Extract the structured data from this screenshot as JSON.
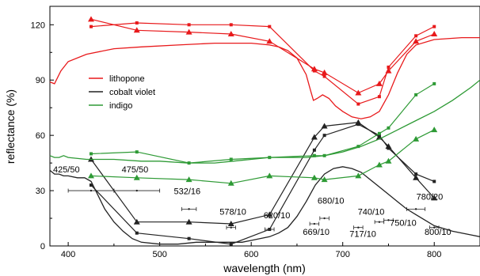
{
  "chart_data": {
    "type": "line",
    "xlabel": "wavelength (nm)",
    "ylabel": "reflectance (%)",
    "xlim": [
      380,
      850
    ],
    "ylim": [
      0,
      130
    ],
    "xticks": [
      400,
      500,
      600,
      700,
      800
    ],
    "yticks": [
      0,
      30,
      60,
      90,
      120
    ],
    "grid": false,
    "legend_position": "upper-left",
    "series": [
      {
        "name": "lithopone",
        "color": "#e8191b",
        "kind": "continuous",
        "points": [
          [
            380,
            89
          ],
          [
            385,
            88
          ],
          [
            392,
            95
          ],
          [
            400,
            100
          ],
          [
            420,
            104
          ],
          [
            450,
            107
          ],
          [
            480,
            108
          ],
          [
            520,
            109
          ],
          [
            560,
            110
          ],
          [
            600,
            110
          ],
          [
            620,
            109
          ],
          [
            630,
            108
          ],
          [
            640,
            106
          ],
          [
            650,
            102
          ],
          [
            660,
            93
          ],
          [
            665,
            84
          ],
          [
            668,
            79
          ],
          [
            672,
            80
          ],
          [
            678,
            82
          ],
          [
            685,
            80
          ],
          [
            692,
            76
          ],
          [
            700,
            73
          ],
          [
            710,
            70
          ],
          [
            720,
            69
          ],
          [
            730,
            70
          ],
          [
            740,
            73
          ],
          [
            750,
            82
          ],
          [
            760,
            94
          ],
          [
            770,
            104
          ],
          [
            780,
            109
          ],
          [
            800,
            112
          ],
          [
            830,
            113
          ],
          [
            850,
            113
          ]
        ]
      },
      {
        "name": "",
        "color": "#e8191b",
        "kind": "markers",
        "marker": "triangle",
        "points": [
          [
            425,
            123
          ],
          [
            475,
            117
          ],
          [
            532,
            116
          ],
          [
            578,
            115
          ],
          [
            620,
            111
          ],
          [
            669,
            96
          ],
          [
            680,
            94
          ],
          [
            717,
            83
          ],
          [
            740,
            88
          ],
          [
            750,
            95
          ],
          [
            780,
            111
          ],
          [
            800,
            115
          ]
        ]
      },
      {
        "name": "",
        "color": "#e8191b",
        "kind": "markers",
        "marker": "square",
        "points": [
          [
            425,
            119
          ],
          [
            475,
            121
          ],
          [
            532,
            120
          ],
          [
            578,
            120
          ],
          [
            620,
            119
          ],
          [
            669,
            95
          ],
          [
            680,
            92
          ],
          [
            717,
            77
          ],
          [
            740,
            81
          ],
          [
            750,
            97
          ],
          [
            780,
            114
          ],
          [
            800,
            119
          ]
        ]
      },
      {
        "name": "cobalt violet",
        "color": "#222222",
        "kind": "continuous",
        "points": [
          [
            380,
            41
          ],
          [
            385,
            39
          ],
          [
            390,
            39
          ],
          [
            395,
            38
          ],
          [
            400,
            38
          ],
          [
            410,
            37
          ],
          [
            418,
            37
          ],
          [
            425,
            35
          ],
          [
            432,
            28
          ],
          [
            440,
            20
          ],
          [
            450,
            13
          ],
          [
            460,
            8
          ],
          [
            470,
            4
          ],
          [
            480,
            2
          ],
          [
            500,
            1
          ],
          [
            520,
            1
          ],
          [
            540,
            2
          ],
          [
            560,
            2
          ],
          [
            580,
            2
          ],
          [
            590,
            2
          ],
          [
            600,
            3
          ],
          [
            620,
            5
          ],
          [
            630,
            7
          ],
          [
            640,
            10
          ],
          [
            650,
            16
          ],
          [
            660,
            24
          ],
          [
            670,
            33
          ],
          [
            680,
            39
          ],
          [
            690,
            42
          ],
          [
            700,
            43
          ],
          [
            710,
            42
          ],
          [
            720,
            40
          ],
          [
            730,
            36
          ],
          [
            740,
            32
          ],
          [
            750,
            28
          ],
          [
            760,
            24
          ],
          [
            770,
            20
          ],
          [
            780,
            17
          ],
          [
            790,
            14
          ],
          [
            800,
            11
          ],
          [
            820,
            8
          ],
          [
            840,
            6
          ],
          [
            850,
            5
          ]
        ]
      },
      {
        "name": "",
        "color": "#222222",
        "kind": "markers",
        "marker": "triangle",
        "points": [
          [
            425,
            47
          ],
          [
            475,
            13
          ],
          [
            532,
            13
          ],
          [
            578,
            12
          ],
          [
            620,
            17
          ],
          [
            669,
            59
          ],
          [
            680,
            65
          ],
          [
            717,
            67
          ],
          [
            740,
            59
          ],
          [
            750,
            54
          ],
          [
            780,
            37
          ],
          [
            800,
            26
          ]
        ]
      },
      {
        "name": "",
        "color": "#222222",
        "kind": "markers",
        "marker": "square",
        "points": [
          [
            425,
            33
          ],
          [
            475,
            7
          ],
          [
            532,
            4
          ],
          [
            578,
            1
          ],
          [
            620,
            9
          ],
          [
            669,
            52
          ],
          [
            680,
            60
          ],
          [
            717,
            66
          ],
          [
            740,
            60
          ],
          [
            750,
            53
          ],
          [
            780,
            39
          ],
          [
            800,
            35
          ]
        ]
      },
      {
        "name": "indigo",
        "color": "#2e9a35",
        "kind": "continuous",
        "points": [
          [
            380,
            49
          ],
          [
            385,
            48
          ],
          [
            390,
            48
          ],
          [
            395,
            49
          ],
          [
            400,
            48
          ],
          [
            420,
            47
          ],
          [
            450,
            47
          ],
          [
            480,
            46
          ],
          [
            500,
            46
          ],
          [
            530,
            45
          ],
          [
            560,
            45
          ],
          [
            580,
            46
          ],
          [
            600,
            47
          ],
          [
            620,
            48
          ],
          [
            640,
            48
          ],
          [
            660,
            48
          ],
          [
            680,
            49
          ],
          [
            700,
            51
          ],
          [
            720,
            54
          ],
          [
            740,
            58
          ],
          [
            760,
            63
          ],
          [
            780,
            68
          ],
          [
            800,
            73
          ],
          [
            820,
            79
          ],
          [
            840,
            86
          ],
          [
            850,
            90
          ]
        ]
      },
      {
        "name": "",
        "color": "#2e9a35",
        "kind": "markers",
        "marker": "triangle",
        "points": [
          [
            425,
            38
          ],
          [
            475,
            37
          ],
          [
            532,
            36
          ],
          [
            578,
            34
          ],
          [
            620,
            38
          ],
          [
            669,
            37
          ],
          [
            680,
            36
          ],
          [
            717,
            38
          ],
          [
            740,
            44
          ],
          [
            750,
            46
          ],
          [
            780,
            58
          ],
          [
            800,
            63
          ]
        ]
      },
      {
        "name": "",
        "color": "#2e9a35",
        "kind": "markers",
        "marker": "square",
        "points": [
          [
            425,
            50
          ],
          [
            475,
            51
          ],
          [
            532,
            45
          ],
          [
            578,
            47
          ],
          [
            620,
            48
          ],
          [
            669,
            49
          ],
          [
            680,
            49
          ],
          [
            717,
            54
          ],
          [
            740,
            61
          ],
          [
            750,
            64
          ],
          [
            780,
            82
          ],
          [
            800,
            88
          ]
        ]
      }
    ],
    "filters": [
      {
        "label": "425/50",
        "center": 425,
        "width": 50,
        "bar_y": 30,
        "label_x": 398,
        "label_y": 40
      },
      {
        "label": "475/50",
        "center": 475,
        "width": 50,
        "bar_y": 30,
        "label_x": 473,
        "label_y": 40
      },
      {
        "label": "532/16",
        "center": 532,
        "width": 16,
        "bar_y": 20,
        "label_x": 530,
        "label_y": 28
      },
      {
        "label": "578/10",
        "center": 578,
        "width": 10,
        "bar_y": 10,
        "label_x": 580,
        "label_y": 17
      },
      {
        "label": "620/10",
        "center": 620,
        "width": 10,
        "bar_y": 9,
        "label_x": 628,
        "label_y": 15
      },
      {
        "label": "669/10",
        "center": 669,
        "width": 10,
        "bar_y": 12,
        "label_x": 671,
        "label_y": 6
      },
      {
        "label": "680/10",
        "center": 680,
        "width": 10,
        "bar_y": 15,
        "label_x": 687,
        "label_y": 23
      },
      {
        "label": "717/10",
        "center": 717,
        "width": 10,
        "bar_y": 10,
        "label_x": 722,
        "label_y": 5
      },
      {
        "label": "740/10",
        "center": 740,
        "width": 10,
        "bar_y": 13,
        "label_x": 731,
        "label_y": 17
      },
      {
        "label": "750/10",
        "center": 750,
        "width": 10,
        "bar_y": 14,
        "label_x": 766,
        "label_y": 11
      },
      {
        "label": "780/20",
        "center": 780,
        "width": 20,
        "bar_y": 20,
        "label_x": 795,
        "label_y": 25
      },
      {
        "label": "800/10",
        "center": 800,
        "width": 10,
        "bar_y": 10,
        "label_x": 804,
        "label_y": 6
      }
    ]
  }
}
